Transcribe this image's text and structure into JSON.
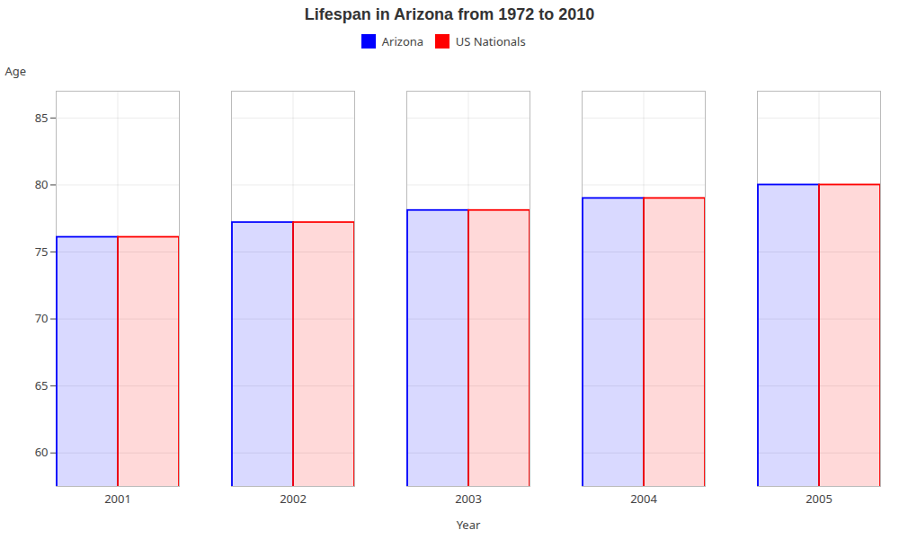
{
  "chart_data": {
    "type": "bar",
    "title": "Lifespan in Arizona from 1972 to 2010",
    "xlabel": "Year",
    "ylabel": "Age",
    "categories": [
      "2001",
      "2002",
      "2003",
      "2004",
      "2005"
    ],
    "series": [
      {
        "name": "Arizona",
        "color": "#0000ff",
        "values": [
          76.1,
          77.2,
          78.1,
          79.0,
          80.0
        ]
      },
      {
        "name": "US Nationals",
        "color": "#ff0000",
        "values": [
          76.1,
          77.2,
          78.1,
          79.0,
          80.0
        ]
      }
    ],
    "ylim": [
      57.5,
      87
    ],
    "yticks": [
      60,
      65,
      70,
      75,
      80,
      85
    ],
    "grid": true,
    "legend": "top"
  }
}
